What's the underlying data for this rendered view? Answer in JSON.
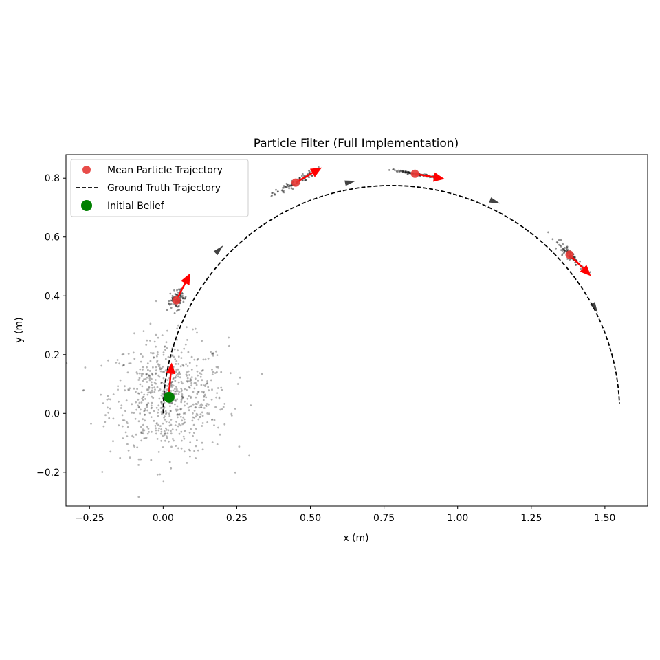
{
  "chart_data": {
    "type": "scatter",
    "title": "Particle Filter (Full Implementation)",
    "xlabel": "x (m)",
    "ylabel": "y (m)",
    "xlim": [
      -0.33,
      1.645
    ],
    "ylim": [
      -0.315,
      0.88
    ],
    "xticks": [
      -0.25,
      0.0,
      0.25,
      0.5,
      0.75,
      1.0,
      1.25,
      1.5
    ],
    "xtick_labels": [
      "−0.25",
      "0.00",
      "0.25",
      "0.50",
      "0.75",
      "1.00",
      "1.25",
      "1.50"
    ],
    "yticks": [
      -0.2,
      0.0,
      0.2,
      0.4,
      0.6,
      0.8
    ],
    "ytick_labels": [
      "−0.2",
      "0.0",
      "0.2",
      "0.4",
      "0.6",
      "0.8"
    ],
    "legend_position": "top-left",
    "legend": [
      {
        "label": "Mean Particle Trajectory",
        "marker": "red-dot"
      },
      {
        "label": "Ground Truth Trajectory",
        "marker": "dashed-line"
      },
      {
        "label": "Initial Belief",
        "marker": "green-dot"
      }
    ],
    "ground_truth": {
      "shape": "arc",
      "center": [
        0.775,
        0.0
      ],
      "radius": 0.775,
      "start_deg": 180,
      "end_deg": 2.5,
      "color": "#000000"
    },
    "ground_truth_heading_arrows": [
      {
        "x": 0.178,
        "y": 0.545,
        "heading_deg": 45
      },
      {
        "x": 0.618,
        "y": 0.783,
        "heading_deg": 12
      },
      {
        "x": 1.11,
        "y": 0.726,
        "heading_deg": -20
      },
      {
        "x": 1.458,
        "y": 0.375,
        "heading_deg": -62
      }
    ],
    "initial_belief": {
      "x": 0.02,
      "y": 0.055,
      "color": "#008000"
    },
    "initial_particle_cloud": {
      "center": [
        0.02,
        0.055
      ],
      "spread": [
        0.1,
        0.1
      ],
      "count": 700
    },
    "mean_particle_trajectory": [
      {
        "x": 0.02,
        "y": 0.07,
        "heading_deg": 85,
        "cluster_spread": [
          0.1,
          0.1
        ]
      },
      {
        "x": 0.045,
        "y": 0.385,
        "heading_deg": 63,
        "cluster_spread": [
          0.012,
          0.035
        ]
      },
      {
        "x": 0.45,
        "y": 0.785,
        "heading_deg": 30,
        "cluster_spread": [
          0.03,
          0.018
        ]
      },
      {
        "x": 0.855,
        "y": 0.815,
        "heading_deg": -10,
        "cluster_spread": [
          0.028,
          0.006
        ]
      },
      {
        "x": 1.38,
        "y": 0.54,
        "heading_deg": -45,
        "cluster_spread": [
          0.025,
          0.018
        ]
      }
    ],
    "colors": {
      "mean_marker": "#e53935",
      "heading_arrow": "#ff0000",
      "particles": "#444444",
      "ground_truth": "#000000",
      "initial_belief": "#008000"
    }
  }
}
